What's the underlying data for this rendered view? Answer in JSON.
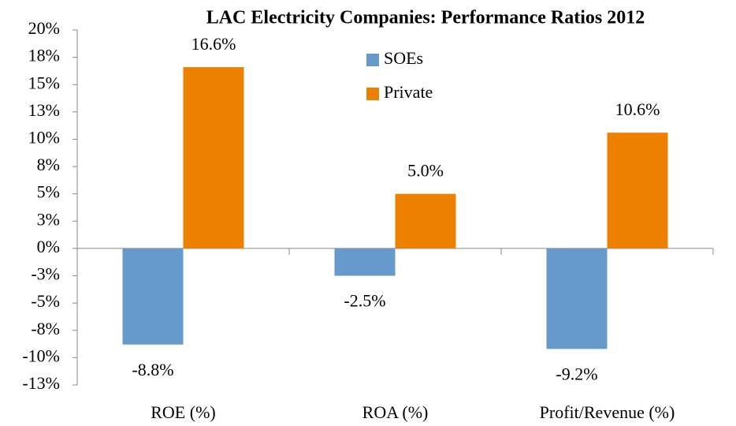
{
  "chart_data": {
    "type": "bar",
    "title": "LAC Electricity Companies: Performance Ratios 2012",
    "categories": [
      "ROE (%)",
      "ROA (%)",
      "Profit/Revenue (%)"
    ],
    "series": [
      {
        "name": "SOEs",
        "color": "#6699cc",
        "values": [
          -8.8,
          -2.5,
          -9.2
        ],
        "value_labels": [
          "-8.8%",
          "-2.5%",
          "-9.2%"
        ]
      },
      {
        "name": "Private",
        "color": "#ee8000",
        "values": [
          16.6,
          5.0,
          10.6
        ],
        "value_labels": [
          "16.6%",
          "5.0%",
          "10.6%"
        ]
      }
    ],
    "ylim": [
      -12.5,
      20
    ],
    "yticks": [
      {
        "value": 20,
        "label": "20%"
      },
      {
        "value": 17.5,
        "label": "18%"
      },
      {
        "value": 15,
        "label": "15%"
      },
      {
        "value": 12.5,
        "label": "13%"
      },
      {
        "value": 10,
        "label": "10%"
      },
      {
        "value": 7.5,
        "label": "8%"
      },
      {
        "value": 5,
        "label": "5%"
      },
      {
        "value": 2.5,
        "label": "3%"
      },
      {
        "value": 0,
        "label": "0%"
      },
      {
        "value": -2.5,
        "label": "-3%"
      },
      {
        "value": -5,
        "label": "-5%"
      },
      {
        "value": -7.5,
        "label": "-8%"
      },
      {
        "value": -10,
        "label": "-10%"
      },
      {
        "value": -12.5,
        "label": "-13%"
      }
    ],
    "grid": false,
    "legend": "upper center"
  }
}
